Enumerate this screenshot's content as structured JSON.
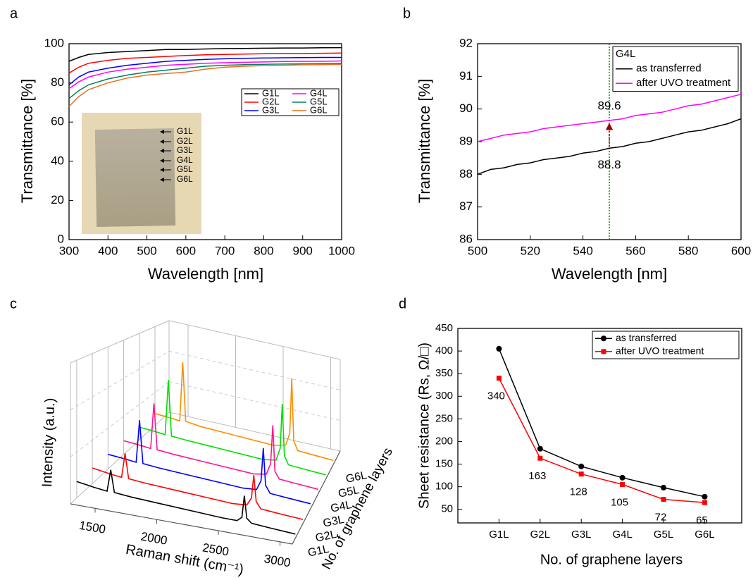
{
  "chart_data": [
    {
      "type": "line",
      "panel_label": "a",
      "xlabel": "Wavelength [nm]",
      "ylabel": "Transmittance [%]",
      "x": [
        300,
        325,
        350,
        400,
        450,
        500,
        550,
        600,
        650,
        700,
        750,
        800,
        850,
        900,
        950,
        1000
      ],
      "xlim": [
        300,
        1000
      ],
      "xticks": [
        300,
        400,
        500,
        600,
        700,
        800,
        900,
        1000
      ],
      "ylim": [
        0,
        100
      ],
      "yticks": [
        0,
        20,
        40,
        60,
        80,
        100
      ],
      "legend": "upper right",
      "legend_columns": 2,
      "inset_labels": [
        "G1L",
        "G2L",
        "G3L",
        "G4L",
        "G5L",
        "G6L"
      ],
      "series": [
        {
          "name": "G1L",
          "color": "#000000",
          "values": [
            91,
            93,
            94.5,
            95.5,
            96,
            96.5,
            97,
            97,
            97.3,
            97.5,
            97.6,
            97.7,
            97.8,
            97.8,
            97.9,
            98
          ]
        },
        {
          "name": "G2L",
          "color": "#ff0000",
          "values": [
            85,
            88,
            90,
            91.5,
            92.5,
            93,
            93.5,
            94,
            94.3,
            94.5,
            94.7,
            94.9,
            95,
            95,
            95.1,
            95.2
          ]
        },
        {
          "name": "G3L",
          "color": "#0000ff",
          "values": [
            79,
            83,
            85.5,
            87.5,
            89,
            90,
            91,
            91.5,
            92,
            92.3,
            92.5,
            92.7,
            92.8,
            92.9,
            93,
            93
          ]
        },
        {
          "name": "G4L",
          "color": "#ff00ff",
          "values": [
            77,
            80.5,
            83,
            85.5,
            87,
            88,
            89,
            89.5,
            90,
            90.3,
            90.5,
            90.7,
            90.9,
            91,
            91,
            91.2
          ]
        },
        {
          "name": "G5L",
          "color": "#008060",
          "values": [
            72,
            76,
            79,
            82,
            84,
            85.5,
            86.5,
            87.5,
            88.5,
            89,
            89.3,
            89.5,
            89.6,
            89.7,
            89.8,
            90
          ]
        },
        {
          "name": "G6L",
          "color": "#e87020",
          "values": [
            68,
            73,
            76.5,
            80,
            82.5,
            84,
            84.8,
            85.5,
            87,
            88,
            88.5,
            88.8,
            89,
            89.2,
            89.3,
            89.5
          ]
        }
      ]
    },
    {
      "type": "line",
      "panel_label": "b",
      "xlabel": "Wavelength [nm]",
      "ylabel": "Transmittance [%]",
      "x": [
        500,
        505,
        510,
        515,
        520,
        525,
        530,
        535,
        540,
        545,
        550,
        555,
        560,
        565,
        570,
        575,
        580,
        585,
        590,
        595,
        600
      ],
      "xlim": [
        500,
        600
      ],
      "xticks": [
        500,
        520,
        540,
        560,
        580,
        600
      ],
      "ylim": [
        86,
        92
      ],
      "yticks": [
        86,
        87,
        88,
        89,
        90,
        91,
        92
      ],
      "legend": "upper right",
      "legend_title": "G4L",
      "vline": {
        "x": 550,
        "color": "#009900"
      },
      "annotations": [
        {
          "value": 89.6,
          "x": 550,
          "color": "#ff0000",
          "position": "above"
        },
        {
          "value": 88.8,
          "x": 550,
          "color": "#000000",
          "position": "below"
        }
      ],
      "arrow_color": "#a00000",
      "series": [
        {
          "name": "as transferred",
          "color": "#000000",
          "values": [
            88.0,
            88.15,
            88.2,
            88.3,
            88.35,
            88.45,
            88.5,
            88.55,
            88.65,
            88.7,
            88.8,
            88.85,
            88.95,
            89.0,
            89.1,
            89.2,
            89.3,
            89.35,
            89.45,
            89.55,
            89.7
          ]
        },
        {
          "name": "after UVO treatment",
          "color": "#ff00ff",
          "values": [
            89.0,
            89.1,
            89.2,
            89.25,
            89.3,
            89.4,
            89.45,
            89.5,
            89.55,
            89.6,
            89.65,
            89.7,
            89.8,
            89.85,
            89.9,
            90.0,
            90.1,
            90.15,
            90.25,
            90.35,
            90.45
          ]
        }
      ]
    },
    {
      "type": "waterfall3d",
      "panel_label": "c",
      "xlabel": "Raman shift (cm⁻¹)",
      "zlabel": "Intensity (a.u.)",
      "ylabel": "No. of graphene layers",
      "x": [
        1300,
        1450,
        1550,
        1580,
        1610,
        1750,
        2000,
        2250,
        2500,
        2620,
        2660,
        2680,
        2700,
        2740,
        2900,
        3100
      ],
      "xlim": [
        1300,
        3100
      ],
      "xticks": [
        1500,
        2000,
        2500,
        3000
      ],
      "zlim": [
        0,
        100
      ],
      "series": [
        {
          "name": "G1L",
          "color": "#000000",
          "values": [
            12,
            10,
            9,
            25,
            9,
            8,
            7,
            6,
            5,
            5,
            8,
            24,
            8,
            5,
            4,
            3
          ]
        },
        {
          "name": "G2L",
          "color": "#ff0000",
          "values": [
            12,
            10,
            9,
            28,
            9,
            8,
            7,
            6,
            5,
            6,
            12,
            30,
            10,
            5,
            4,
            3
          ]
        },
        {
          "name": "G3L",
          "color": "#0000ff",
          "values": [
            12,
            11,
            10,
            45,
            10,
            9,
            8,
            7,
            6,
            7,
            15,
            42,
            12,
            6,
            5,
            4
          ]
        },
        {
          "name": "G4L",
          "color": "#ff1493",
          "values": [
            12,
            11,
            10,
            50,
            10,
            9,
            8,
            7,
            6,
            8,
            18,
            52,
            12,
            6,
            5,
            4
          ]
        },
        {
          "name": "G5L",
          "color": "#00e000",
          "values": [
            12,
            11,
            10,
            62,
            10,
            9,
            8,
            7,
            6,
            8,
            20,
            62,
            14,
            6,
            5,
            4
          ]
        },
        {
          "name": "G6L",
          "color": "#ff8c00",
          "values": [
            12,
            11,
            10,
            70,
            11,
            9,
            8,
            7,
            6,
            9,
            22,
            78,
            15,
            6,
            5,
            4
          ]
        }
      ]
    },
    {
      "type": "line",
      "panel_label": "d",
      "xlabel": "No. of graphene layers",
      "ylabel": "Sheet resistance (Rs, Ω/□)",
      "categories": [
        "G1L",
        "G2L",
        "G3L",
        "G4L",
        "G5L",
        "G6L"
      ],
      "ylim": [
        20,
        450
      ],
      "yticks": [
        50,
        100,
        150,
        200,
        250,
        300,
        350,
        400,
        450
      ],
      "legend": "upper right",
      "series": [
        {
          "name": "as transferred",
          "color": "#000000",
          "marker": "circle",
          "values": [
            405,
            184,
            145,
            120,
            98,
            78
          ]
        },
        {
          "name": "after UVO treatment",
          "color": "#ff0000",
          "marker": "square",
          "show_values": true,
          "values": [
            340,
            163,
            128,
            105,
            72,
            65
          ]
        }
      ]
    }
  ]
}
